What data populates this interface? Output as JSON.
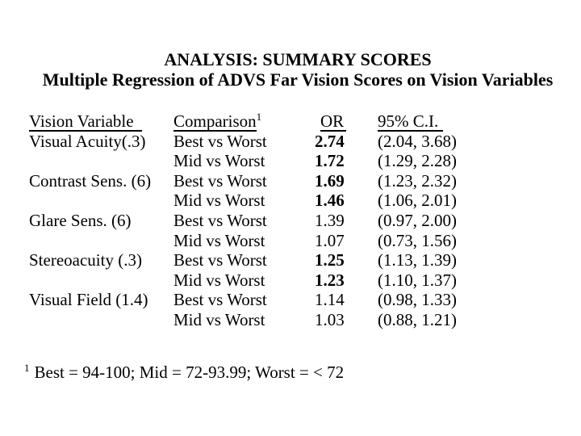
{
  "title": {
    "line1": "ANALYSIS: SUMMARY SCORES",
    "line2": "Multiple Regression of ADVS Far Vision Scores on Vision Variables"
  },
  "table": {
    "headers": {
      "vision_variable": "Vision Variable",
      "comparison": "Comparison",
      "comparison_sup": "1",
      "or": "OR",
      "ci": "95% C.I."
    },
    "rows": [
      {
        "variable": "Visual Acuity(.3)",
        "comparison": "Best vs Worst",
        "or": "2.74",
        "or_bold": true,
        "ci": "(2.04, 3.68)"
      },
      {
        "variable": "",
        "comparison": "Mid vs Worst",
        "or": "1.72",
        "or_bold": true,
        "ci": "(1.29, 2.28)"
      },
      {
        "variable": "Contrast Sens. (6)",
        "comparison": "Best vs Worst",
        "or": "1.69",
        "or_bold": true,
        "ci": "(1.23, 2.32)"
      },
      {
        "variable": "",
        "comparison": "Mid vs Worst",
        "or": "1.46",
        "or_bold": true,
        "ci": "(1.06, 2.01)"
      },
      {
        "variable": "Glare Sens. (6)",
        "comparison": "Best vs Worst",
        "or": "1.39",
        "or_bold": false,
        "ci": "(0.97, 2.00)"
      },
      {
        "variable": "",
        "comparison": "Mid vs Worst",
        "or": "1.07",
        "or_bold": false,
        "ci": "(0.73, 1.56)"
      },
      {
        "variable": "Stereoacuity (.3)",
        "comparison": "Best vs Worst",
        "or": "1.25",
        "or_bold": true,
        "ci": "(1.13, 1.39)"
      },
      {
        "variable": "",
        "comparison": "Mid vs Worst",
        "or": "1.23",
        "or_bold": true,
        "ci": "(1.10, 1.37)"
      },
      {
        "variable": "Visual Field (1.4)",
        "comparison": "Best vs Worst",
        "or": "1.14",
        "or_bold": false,
        "ci": "(0.98, 1.33)"
      },
      {
        "variable": "",
        "comparison": "Mid vs Worst",
        "or": "1.03",
        "or_bold": false,
        "ci": "(0.88, 1.21)"
      }
    ]
  },
  "footnote": {
    "marker": "1",
    "text": "Best = 94-100; Mid = 72-93.99; Worst = < 72"
  },
  "colors": {
    "background": "#ffffff",
    "text": "#000000"
  }
}
